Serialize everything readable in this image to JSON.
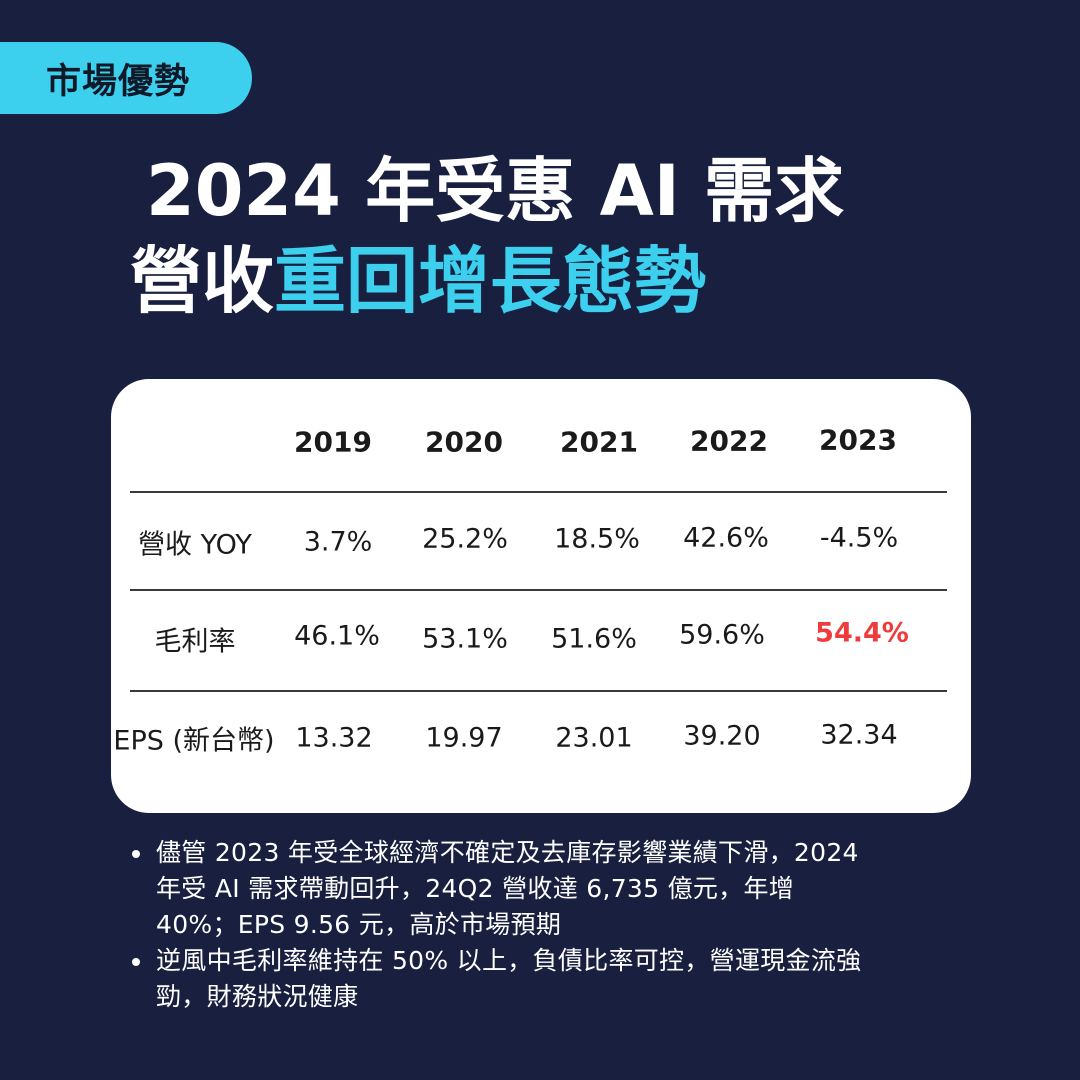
{
  "tag": {
    "label": "市場優勢"
  },
  "headline": {
    "line1": "2024 年受惠 AI 需求",
    "line2_white": "營收",
    "line2_accent": "重回增長態勢"
  },
  "table": {
    "years": [
      "2019",
      "2020",
      "2021",
      "2022",
      "2023"
    ],
    "rows": [
      {
        "label": "營收 YOY",
        "values": [
          "3.7%",
          "25.2%",
          "18.5%",
          "42.6%",
          "-4.5%"
        ]
      },
      {
        "label": "毛利率",
        "values": [
          "46.1%",
          "53.1%",
          "51.6%",
          "59.6%",
          "54.4%"
        ]
      },
      {
        "label": "EPS (新台幣)",
        "values": [
          "13.32",
          "19.97",
          "23.01",
          "39.20",
          "32.34"
        ]
      }
    ]
  },
  "notes": [
    {
      "lines": [
        "儘管 2023 年受全球經濟不確定及去庫存影響業績下滑，2024",
        "年受 AI 需求帶動回升，24Q2 營收達 6,735 億元，年增",
        "40%；EPS 9.56 元，高於市場預期"
      ]
    },
    {
      "lines": [
        "逆風中毛利率維持在 50% 以上，負債比率可控，營運現金流強",
        "勁，財務狀況健康"
      ]
    }
  ],
  "colors": {
    "background": "#19203f",
    "accent": "#3ccfee",
    "highlight": "#ef3b3b"
  }
}
